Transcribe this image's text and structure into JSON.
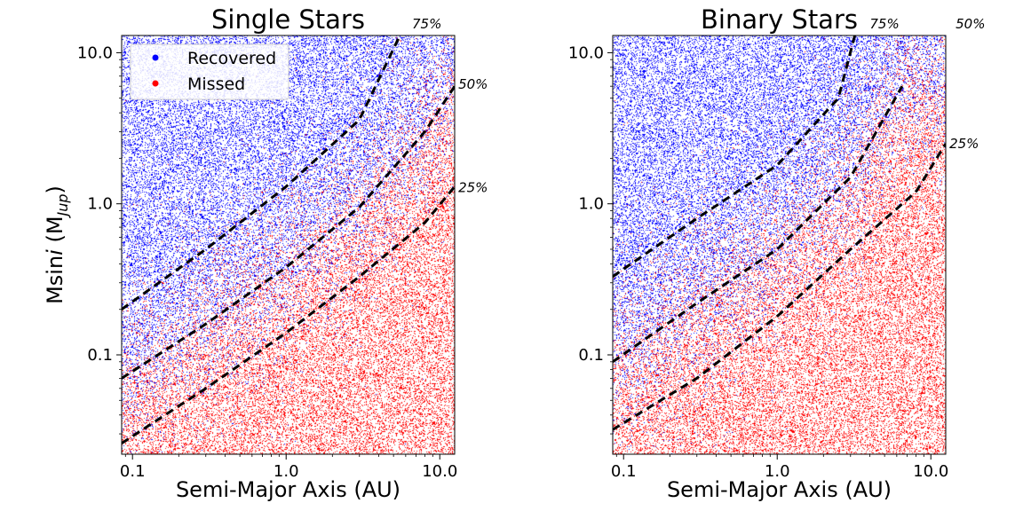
{
  "chart_data": [
    {
      "type": "scatter",
      "title": "Single Stars",
      "xlabel": "Semi-Major Axis (AU)",
      "ylabel": "Msini (Mjup)",
      "ylabel_parts": {
        "main": "Msin",
        "italic": "i",
        "open": " (M",
        "sub": "Jup",
        "close": ")"
      },
      "xscale": "log",
      "yscale": "log",
      "xlim": [
        0.085,
        12.5
      ],
      "ylim": [
        0.022,
        13
      ],
      "xticks": [
        0.1,
        1.0,
        10.0
      ],
      "xtick_labels": [
        "0.1",
        "1.0",
        "10.0"
      ],
      "yticks": [
        0.1,
        1.0,
        10.0
      ],
      "ytick_labels": [
        "0.1",
        "1.0",
        "10.0"
      ],
      "legend": {
        "position": "top-left",
        "entries": [
          {
            "label": "Recovered",
            "color": "#0000ff"
          },
          {
            "label": "Missed",
            "color": "#ff0000"
          }
        ]
      },
      "contours": [
        {
          "label": "75%",
          "points": [
            [
              0.085,
              0.2
            ],
            [
              0.3,
              0.5
            ],
            [
              1.0,
              1.3
            ],
            [
              3.0,
              3.6
            ],
            [
              5.5,
              13
            ]
          ]
        },
        {
          "label": "50%",
          "points": [
            [
              0.085,
              0.07
            ],
            [
              0.3,
              0.16
            ],
            [
              1.0,
              0.38
            ],
            [
              3.0,
              0.95
            ],
            [
              8.0,
              3.0
            ],
            [
              12.5,
              6.0
            ]
          ]
        },
        {
          "label": "25%",
          "points": [
            [
              0.085,
              0.026
            ],
            [
              0.3,
              0.06
            ],
            [
              1.0,
              0.14
            ],
            [
              3.0,
              0.33
            ],
            [
              8.0,
              0.75
            ],
            [
              12.5,
              1.3
            ]
          ]
        }
      ],
      "contour_label_values": [
        {
          "label": "75%",
          "x": 6.6,
          "y": 15.5
        },
        {
          "label": "50%",
          "x": 13.2,
          "y": 6.2
        },
        {
          "label": "25%",
          "x": 13.2,
          "y": 1.28
        }
      ]
    },
    {
      "type": "scatter",
      "title": "Binary Stars",
      "xlabel": "Semi-Major Axis (AU)",
      "ylabel": "",
      "xscale": "log",
      "yscale": "log",
      "xlim": [
        0.085,
        12.5
      ],
      "ylim": [
        0.022,
        13
      ],
      "xticks": [
        0.1,
        1.0,
        10.0
      ],
      "xtick_labels": [
        "0.1",
        "1.0",
        "10.0"
      ],
      "yticks": [
        0.1,
        1.0,
        10.0
      ],
      "ytick_labels": [
        "0.1",
        "1.0",
        "10.0"
      ],
      "contours": [
        {
          "label": "75%",
          "points": [
            [
              0.085,
              0.33
            ],
            [
              0.3,
              0.8
            ],
            [
              1.0,
              1.8
            ],
            [
              2.5,
              5.0
            ],
            [
              3.2,
              13
            ]
          ]
        },
        {
          "label": "50%",
          "points": [
            [
              0.085,
              0.09
            ],
            [
              0.3,
              0.22
            ],
            [
              1.0,
              0.5
            ],
            [
              3.0,
              1.5
            ],
            [
              6.5,
              6.0
            ]
          ]
        },
        {
          "label": "25%",
          "points": [
            [
              0.085,
              0.032
            ],
            [
              0.3,
              0.07
            ],
            [
              1.0,
              0.18
            ],
            [
              3.0,
              0.5
            ],
            [
              8.0,
              1.2
            ],
            [
              12.5,
              2.5
            ]
          ]
        }
      ],
      "contour_label_values": [
        {
          "label": "75%",
          "x": 4.0,
          "y": 15.5
        },
        {
          "label": "50%",
          "x": 14.5,
          "y": 15.5
        },
        {
          "label": "25%",
          "x": 13.2,
          "y": 2.5
        }
      ]
    }
  ]
}
